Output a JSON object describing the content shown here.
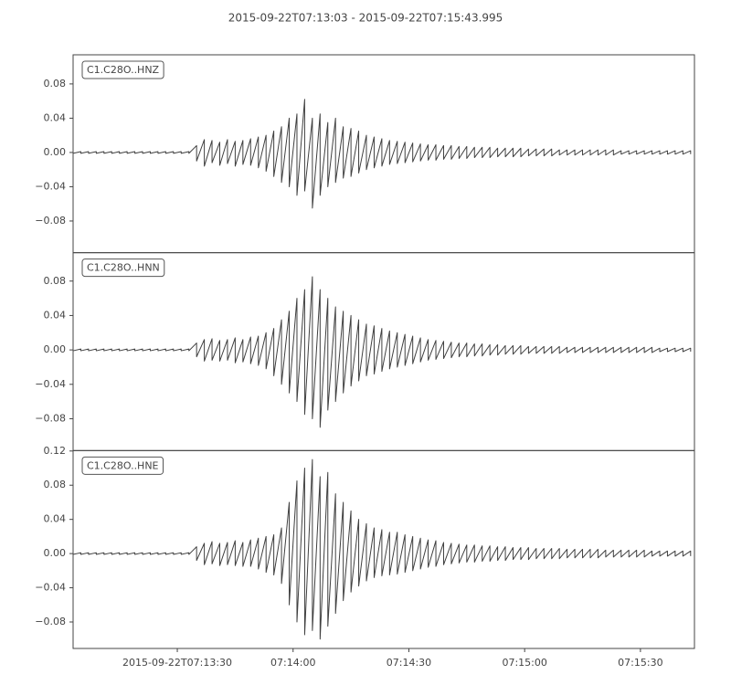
{
  "chart_data": {
    "type": "line",
    "title": "2015-09-22T07:13:03  -  2015-09-22T07:15:43.995",
    "xlim": [
      "07:13:03",
      "07:15:43.995"
    ],
    "xticks": [
      {
        "value": "07:13:30",
        "label": "2015-09-22T07:13:30"
      },
      "07:14:00",
      "07:14:30",
      "07:15:00",
      "07:15:30"
    ],
    "x": [
      "07:13:03",
      "07:13:05",
      "07:13:07",
      "07:13:09",
      "07:13:11",
      "07:13:13",
      "07:13:15",
      "07:13:17",
      "07:13:19",
      "07:13:21",
      "07:13:23",
      "07:13:25",
      "07:13:27",
      "07:13:29",
      "07:13:31",
      "07:13:33",
      "07:13:35",
      "07:13:37",
      "07:13:39",
      "07:13:41",
      "07:13:43",
      "07:13:45",
      "07:13:47",
      "07:13:49",
      "07:13:51",
      "07:13:53",
      "07:13:55",
      "07:13:57",
      "07:13:59",
      "07:14:01",
      "07:14:03",
      "07:14:05",
      "07:14:07",
      "07:14:09",
      "07:14:11",
      "07:14:13",
      "07:14:15",
      "07:14:17",
      "07:14:19",
      "07:14:21",
      "07:14:23",
      "07:14:25",
      "07:14:27",
      "07:14:29",
      "07:14:31",
      "07:14:33",
      "07:14:35",
      "07:14:37",
      "07:14:39",
      "07:14:41",
      "07:14:43",
      "07:14:45",
      "07:14:47",
      "07:14:49",
      "07:14:51",
      "07:14:53",
      "07:14:55",
      "07:14:57",
      "07:14:59",
      "07:15:01",
      "07:15:03",
      "07:15:05",
      "07:15:07",
      "07:15:09",
      "07:15:11",
      "07:15:13",
      "07:15:15",
      "07:15:17",
      "07:15:19",
      "07:15:21",
      "07:15:23",
      "07:15:25",
      "07:15:27",
      "07:15:29",
      "07:15:31",
      "07:15:33",
      "07:15:35",
      "07:15:37",
      "07:15:39",
      "07:15:41",
      "07:15:43"
    ],
    "series": [
      {
        "name": "C1.C28O..HNZ",
        "color": "#404040",
        "ylim": [
          -0.117,
          0.114
        ],
        "yticks": [
          {
            "value": -0.08,
            "label": "−0.08"
          },
          {
            "value": -0.04,
            "label": "−0.04"
          },
          {
            "value": 0,
            "label": "0.00"
          },
          0.04,
          0.08
        ],
        "upper": [
          0.001,
          0.001,
          0.001,
          0.001,
          0.001,
          0.001,
          0.001,
          0.001,
          0.001,
          0.001,
          0.001,
          0.001,
          0.001,
          0.001,
          0.001,
          0.001,
          0.008,
          0.015,
          0.014,
          0.012,
          0.015,
          0.013,
          0.014,
          0.016,
          0.018,
          0.02,
          0.025,
          0.03,
          0.04,
          0.045,
          0.062,
          0.04,
          0.045,
          0.035,
          0.04,
          0.03,
          0.028,
          0.025,
          0.02,
          0.018,
          0.016,
          0.014,
          0.013,
          0.012,
          0.011,
          0.01,
          0.009,
          0.009,
          0.008,
          0.008,
          0.007,
          0.007,
          0.006,
          0.006,
          0.006,
          0.005,
          0.005,
          0.005,
          0.005,
          0.004,
          0.004,
          0.004,
          0.004,
          0.003,
          0.003,
          0.003,
          0.003,
          0.003,
          0.003,
          0.003,
          0.003,
          0.002,
          0.002,
          0.002,
          0.002,
          0.002,
          0.002,
          0.002,
          0.002,
          0.002,
          0.002
        ],
        "lower": [
          -0.001,
          -0.001,
          -0.001,
          -0.001,
          -0.001,
          -0.001,
          -0.001,
          -0.001,
          -0.001,
          -0.001,
          -0.001,
          -0.001,
          -0.001,
          -0.001,
          -0.001,
          -0.001,
          -0.01,
          -0.016,
          -0.012,
          -0.015,
          -0.013,
          -0.016,
          -0.014,
          -0.015,
          -0.018,
          -0.022,
          -0.028,
          -0.035,
          -0.04,
          -0.05,
          -0.045,
          -0.065,
          -0.05,
          -0.04,
          -0.035,
          -0.03,
          -0.028,
          -0.024,
          -0.02,
          -0.018,
          -0.016,
          -0.014,
          -0.013,
          -0.012,
          -0.011,
          -0.01,
          -0.009,
          -0.009,
          -0.008,
          -0.008,
          -0.007,
          -0.007,
          -0.006,
          -0.006,
          -0.006,
          -0.005,
          -0.005,
          -0.005,
          -0.005,
          -0.004,
          -0.004,
          -0.004,
          -0.004,
          -0.003,
          -0.003,
          -0.003,
          -0.003,
          -0.003,
          -0.003,
          -0.003,
          -0.003,
          -0.002,
          -0.002,
          -0.002,
          -0.002,
          -0.002,
          -0.002,
          -0.002,
          -0.002,
          -0.002,
          -0.002
        ]
      },
      {
        "name": "C1.C28O..HNN",
        "color": "#404040",
        "ylim": [
          -0.117,
          0.113
        ],
        "yticks": [
          {
            "value": -0.08,
            "label": "−0.08"
          },
          {
            "value": -0.04,
            "label": "−0.04"
          },
          {
            "value": 0,
            "label": "0.00"
          },
          0.04,
          0.08
        ],
        "upper": [
          0.001,
          0.001,
          0.001,
          0.001,
          0.001,
          0.001,
          0.001,
          0.001,
          0.001,
          0.001,
          0.001,
          0.001,
          0.001,
          0.001,
          0.001,
          0.001,
          0.008,
          0.012,
          0.013,
          0.011,
          0.012,
          0.014,
          0.012,
          0.015,
          0.016,
          0.02,
          0.025,
          0.035,
          0.045,
          0.06,
          0.07,
          0.085,
          0.07,
          0.06,
          0.05,
          0.045,
          0.04,
          0.035,
          0.03,
          0.028,
          0.025,
          0.022,
          0.02,
          0.018,
          0.016,
          0.014,
          0.012,
          0.011,
          0.01,
          0.009,
          0.008,
          0.008,
          0.007,
          0.007,
          0.006,
          0.006,
          0.005,
          0.005,
          0.005,
          0.004,
          0.004,
          0.004,
          0.004,
          0.004,
          0.003,
          0.003,
          0.003,
          0.003,
          0.003,
          0.003,
          0.003,
          0.003,
          0.003,
          0.003,
          0.003,
          0.003,
          0.002,
          0.002,
          0.002,
          0.002,
          0.002
        ],
        "lower": [
          -0.001,
          -0.001,
          -0.001,
          -0.001,
          -0.001,
          -0.001,
          -0.001,
          -0.001,
          -0.001,
          -0.001,
          -0.001,
          -0.001,
          -0.001,
          -0.001,
          -0.001,
          -0.001,
          -0.008,
          -0.013,
          -0.012,
          -0.013,
          -0.012,
          -0.015,
          -0.014,
          -0.016,
          -0.018,
          -0.022,
          -0.03,
          -0.04,
          -0.05,
          -0.06,
          -0.075,
          -0.08,
          -0.09,
          -0.07,
          -0.06,
          -0.05,
          -0.042,
          -0.036,
          -0.03,
          -0.028,
          -0.025,
          -0.022,
          -0.02,
          -0.018,
          -0.016,
          -0.014,
          -0.012,
          -0.011,
          -0.01,
          -0.009,
          -0.008,
          -0.008,
          -0.007,
          -0.007,
          -0.006,
          -0.006,
          -0.005,
          -0.005,
          -0.005,
          -0.004,
          -0.004,
          -0.004,
          -0.004,
          -0.004,
          -0.003,
          -0.003,
          -0.003,
          -0.003,
          -0.003,
          -0.003,
          -0.003,
          -0.003,
          -0.003,
          -0.003,
          -0.003,
          -0.003,
          -0.002,
          -0.002,
          -0.002,
          -0.002,
          -0.002
        ]
      },
      {
        "name": "C1.C28O..HNE",
        "color": "#404040",
        "ylim": [
          -0.111,
          0.1205
        ],
        "yticks": [
          {
            "value": -0.08,
            "label": "−0.08"
          },
          {
            "value": -0.04,
            "label": "−0.04"
          },
          {
            "value": 0,
            "label": "0.00"
          },
          0.04,
          0.08,
          0.12
        ],
        "upper": [
          0.001,
          0.001,
          0.001,
          0.001,
          0.001,
          0.001,
          0.001,
          0.001,
          0.001,
          0.001,
          0.001,
          0.001,
          0.001,
          0.001,
          0.001,
          0.001,
          0.008,
          0.012,
          0.014,
          0.012,
          0.013,
          0.015,
          0.013,
          0.016,
          0.018,
          0.02,
          0.022,
          0.03,
          0.06,
          0.085,
          0.1,
          0.11,
          0.09,
          0.095,
          0.07,
          0.06,
          0.05,
          0.04,
          0.035,
          0.03,
          0.028,
          0.025,
          0.025,
          0.022,
          0.02,
          0.018,
          0.016,
          0.015,
          0.013,
          0.012,
          0.011,
          0.01,
          0.01,
          0.009,
          0.009,
          0.008,
          0.008,
          0.007,
          0.007,
          0.007,
          0.006,
          0.006,
          0.006,
          0.006,
          0.005,
          0.005,
          0.005,
          0.005,
          0.005,
          0.004,
          0.004,
          0.004,
          0.004,
          0.004,
          0.004,
          0.003,
          0.003,
          0.003,
          0.003,
          0.003,
          0.003
        ],
        "lower": [
          -0.001,
          -0.001,
          -0.001,
          -0.001,
          -0.001,
          -0.001,
          -0.001,
          -0.001,
          -0.001,
          -0.001,
          -0.001,
          -0.001,
          -0.001,
          -0.001,
          -0.001,
          -0.001,
          -0.008,
          -0.013,
          -0.012,
          -0.014,
          -0.013,
          -0.014,
          -0.015,
          -0.015,
          -0.018,
          -0.022,
          -0.025,
          -0.035,
          -0.06,
          -0.08,
          -0.095,
          -0.09,
          -0.1,
          -0.085,
          -0.07,
          -0.055,
          -0.045,
          -0.038,
          -0.032,
          -0.028,
          -0.026,
          -0.025,
          -0.024,
          -0.022,
          -0.02,
          -0.018,
          -0.016,
          -0.015,
          -0.013,
          -0.012,
          -0.011,
          -0.01,
          -0.01,
          -0.009,
          -0.009,
          -0.008,
          -0.008,
          -0.007,
          -0.007,
          -0.007,
          -0.006,
          -0.006,
          -0.006,
          -0.006,
          -0.005,
          -0.005,
          -0.005,
          -0.005,
          -0.005,
          -0.004,
          -0.004,
          -0.004,
          -0.004,
          -0.004,
          -0.004,
          -0.003,
          -0.003,
          -0.003,
          -0.003,
          -0.003,
          -0.003
        ]
      }
    ]
  }
}
